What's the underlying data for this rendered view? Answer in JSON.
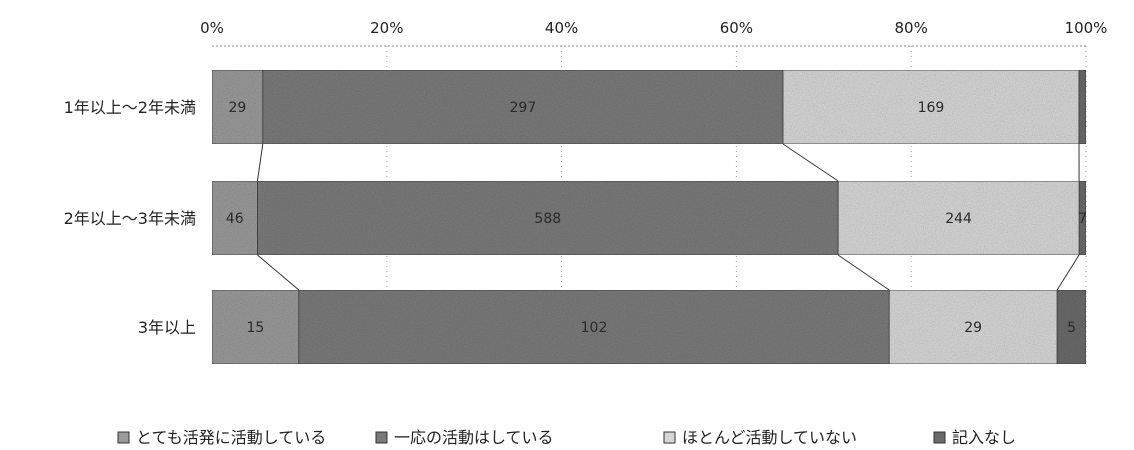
{
  "chart_data": {
    "type": "bar",
    "orientation": "horizontal",
    "stacked": "percent",
    "categories": [
      "1年以上～2年未満",
      "2年以上～3年未満",
      "3年以上"
    ],
    "series": [
      {
        "name": "とても活発に活動している",
        "values": [
          29,
          46,
          15
        ],
        "color": "#9a9a9a"
      },
      {
        "name": "一応の活動はしている",
        "values": [
          297,
          588,
          102
        ],
        "color": "#7a7a7a"
      },
      {
        "name": "ほとんど活動していない",
        "values": [
          169,
          244,
          29
        ],
        "color": "#d6d6d6"
      },
      {
        "name": "記入なし",
        "values": [
          4,
          7,
          5
        ],
        "color": "#6a6a6a"
      }
    ],
    "data_labels": [
      [
        "29",
        "297",
        "169",
        ""
      ],
      [
        "46",
        "588",
        "244",
        "7"
      ],
      [
        "15",
        "102",
        "29",
        "5"
      ]
    ],
    "x_ticks": [
      "0%",
      "20%",
      "40%",
      "60%",
      "80%",
      "100%"
    ],
    "xlim": [
      0,
      100
    ],
    "title": "",
    "xlabel": "",
    "ylabel": "",
    "series_lines": true,
    "legend_position": "bottom"
  }
}
